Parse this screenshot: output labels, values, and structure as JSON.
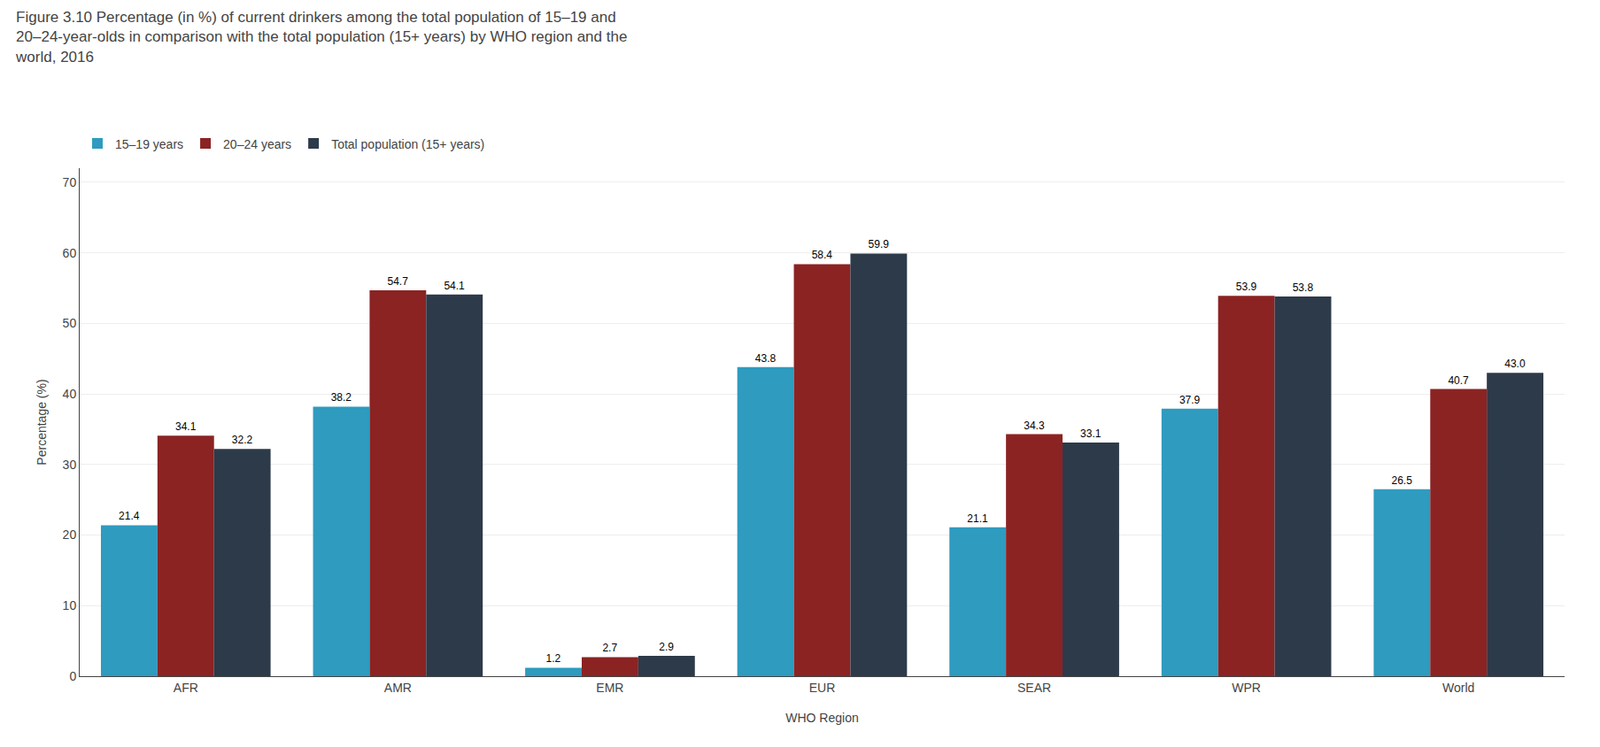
{
  "chart_data": {
    "type": "bar",
    "title": "Figure 3.10 Percentage (in %) of current drinkers among the total population of 15–19 and\n20–24-year-olds in comparison with the total population (15+ years) by WHO region and the\nworld, 2016",
    "x_label": "WHO Region",
    "y_label": "Percentage (%)",
    "categories": [
      "AFR",
      "AMR",
      "EMR",
      "EUR",
      "SEAR",
      "WPR",
      "World"
    ],
    "series": [
      {
        "name": "15–19 years",
        "color": "#2e9bbf",
        "values": [
          21.4,
          38.2,
          1.2,
          43.8,
          21.1,
          37.9,
          26.5
        ]
      },
      {
        "name": "20–24 years",
        "color": "#8b2323",
        "values": [
          34.1,
          54.7,
          2.7,
          58.4,
          34.3,
          53.9,
          40.7
        ]
      },
      {
        "name": "Total population (15+ years)",
        "color": "#2d3a4a",
        "values": [
          32.2,
          54.1,
          2.9,
          59.9,
          33.1,
          53.8,
          43.0
        ],
        "value_labels": [
          "32.2",
          "54.1",
          "2.9",
          "59.9",
          "33.1",
          "53.8",
          "43.0"
        ]
      }
    ],
    "ylim": [
      0,
      72
    ],
    "yticks": [
      0,
      10,
      20,
      30,
      40,
      50,
      60,
      70
    ],
    "grid": true,
    "legend": "upper left",
    "data_labels": true
  }
}
